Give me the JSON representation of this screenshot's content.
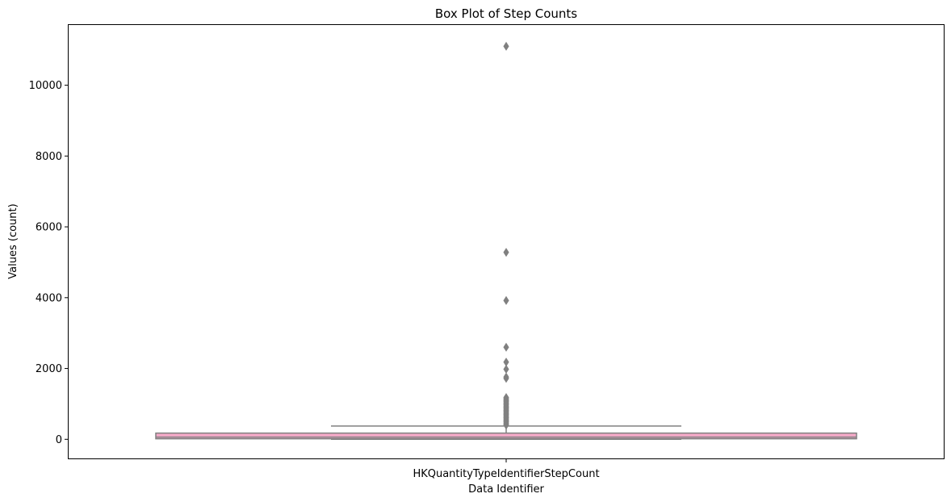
{
  "chart_data": {
    "type": "box",
    "title": "Box Plot of Step Counts",
    "xlabel": "Data Identifier",
    "ylabel": "Values (count)",
    "categories": [
      "HKQuantityTypeIdentifierStepCount"
    ],
    "ylim": [
      -540,
      11700
    ],
    "yticks": [
      0,
      2000,
      4000,
      6000,
      8000,
      10000
    ],
    "grid": false,
    "colors": {
      "box_fill": "#f4a9c8",
      "lines": "#808080",
      "outliers": "#808080"
    },
    "box": {
      "q1": 15,
      "median": 60,
      "q3": 175,
      "whisker_low": 0,
      "whisker_high": 375
    },
    "outliers": [
      11100,
      5280,
      3920,
      2600,
      2180,
      1980,
      1760,
      1720,
      1180,
      1150,
      1120,
      1090,
      1060,
      1030,
      1000,
      970,
      940,
      910,
      880,
      850,
      820,
      790,
      760,
      730,
      700,
      670,
      640,
      610,
      580,
      550,
      520,
      490,
      460,
      430,
      400
    ]
  }
}
